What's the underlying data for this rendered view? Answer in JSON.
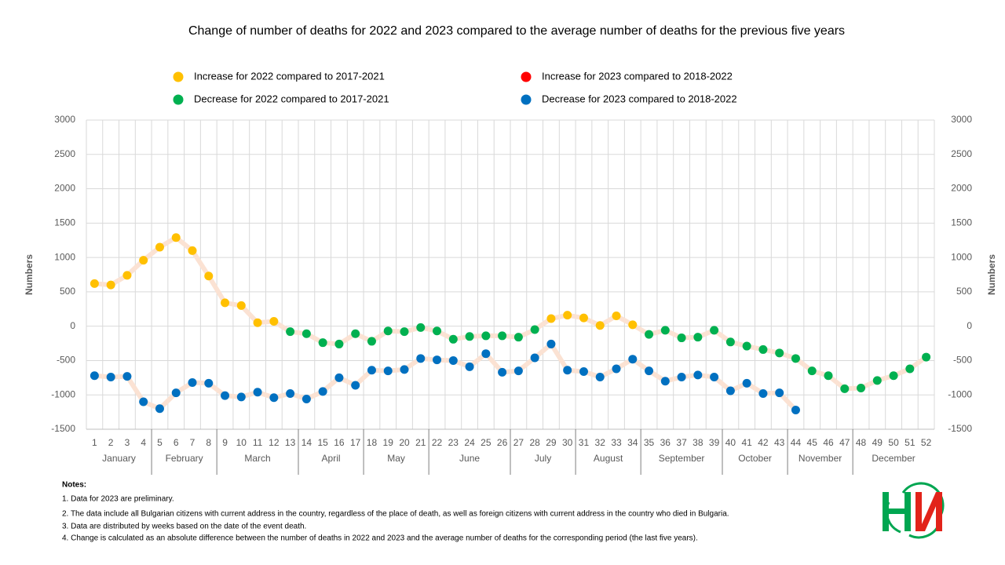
{
  "chart_data": {
    "type": "line",
    "title": "Change of number of deaths for 2022 and 2023 compared to the average number of deaths for the previous five years",
    "y_label": "Numbers",
    "y2_label": "Numbers",
    "categories": [
      "1",
      "2",
      "3",
      "4",
      "5",
      "6",
      "7",
      "8",
      "9",
      "10",
      "11",
      "12",
      "13",
      "14",
      "15",
      "16",
      "17",
      "18",
      "19",
      "20",
      "21",
      "22",
      "23",
      "24",
      "25",
      "26",
      "27",
      "28",
      "29",
      "30",
      "31",
      "32",
      "33",
      "34",
      "35",
      "36",
      "37",
      "38",
      "39",
      "40",
      "41",
      "42",
      "43",
      "44",
      "45",
      "46",
      "47",
      "48",
      "49",
      "50",
      "51",
      "52"
    ],
    "category_groups": [
      {
        "label": "January",
        "from": 1,
        "to": 4
      },
      {
        "label": "February",
        "from": 5,
        "to": 8
      },
      {
        "label": "March",
        "from": 9,
        "to": 13
      },
      {
        "label": "April",
        "from": 14,
        "to": 17
      },
      {
        "label": "May",
        "from": 18,
        "to": 21
      },
      {
        "label": "June",
        "from": 22,
        "to": 26
      },
      {
        "label": "July",
        "from": 27,
        "to": 30
      },
      {
        "label": "August",
        "from": 31,
        "to": 34
      },
      {
        "label": "September",
        "from": 35,
        "to": 39
      },
      {
        "label": "October",
        "from": 40,
        "to": 43
      },
      {
        "label": "November",
        "from": 44,
        "to": 47
      },
      {
        "label": "December",
        "from": 48,
        "to": 52
      }
    ],
    "line_color": "#fbe2d3",
    "series": [
      {
        "name": "Increase for 2022 compared to 2017-2021",
        "color": "#ffc000",
        "values": [
          620,
          600,
          740,
          960,
          1150,
          1290,
          1100,
          730,
          340,
          300,
          50,
          70,
          null,
          null,
          null,
          null,
          null,
          null,
          null,
          null,
          null,
          null,
          null,
          null,
          null,
          null,
          null,
          null,
          110,
          160,
          120,
          10,
          150,
          20,
          null,
          null,
          null,
          null,
          null,
          null,
          null,
          null,
          null,
          null,
          null,
          null,
          null,
          null,
          null,
          null,
          null,
          null
        ]
      },
      {
        "name": "Decrease for 2022 compared to 2017-2021",
        "color": "#00b050",
        "values": [
          null,
          null,
          null,
          null,
          null,
          null,
          null,
          null,
          null,
          null,
          null,
          null,
          -80,
          -110,
          -240,
          -260,
          -110,
          -220,
          -70,
          -80,
          -20,
          -70,
          -190,
          -150,
          -140,
          -140,
          -160,
          -50,
          null,
          null,
          null,
          null,
          null,
          null,
          -120,
          -60,
          -170,
          -160,
          -60,
          -230,
          -290,
          -340,
          -390,
          -470,
          -650,
          -720,
          -910,
          -900,
          -790,
          -720,
          -620,
          -450
        ]
      },
      {
        "name": "Increase for 2023 compared to 2018-2022",
        "color": "#ff0000",
        "values": [
          null,
          null,
          null,
          null,
          null,
          null,
          null,
          null,
          null,
          null,
          null,
          null,
          null,
          null,
          null,
          null,
          null,
          null,
          null,
          null,
          null,
          null,
          null,
          null,
          null,
          null,
          null,
          null,
          null,
          null,
          null,
          null,
          null,
          null,
          null,
          null,
          null,
          null,
          null,
          null,
          null,
          null,
          null,
          null,
          null,
          null,
          null,
          null,
          null,
          null,
          null,
          null
        ]
      },
      {
        "name": "Decrease for 2023 compared to 2018-2022",
        "color": "#0070c0",
        "values": [
          -720,
          -740,
          -730,
          -1100,
          -1200,
          -970,
          -820,
          -830,
          -1010,
          -1030,
          -960,
          -1040,
          -980,
          -1060,
          -950,
          -750,
          -860,
          -640,
          -650,
          -630,
          -470,
          -490,
          -500,
          -590,
          -400,
          -670,
          -650,
          -460,
          -260,
          -640,
          -660,
          -740,
          -620,
          -480,
          -650,
          -800,
          -740,
          -710,
          -740,
          -940,
          -830,
          -980,
          -970,
          -1220,
          null,
          null,
          null,
          null,
          null,
          null,
          null,
          null
        ]
      }
    ],
    "ylim": [
      -1500,
      3000
    ],
    "yticks": [
      -1500,
      -1000,
      -500,
      0,
      500,
      1000,
      1500,
      2000,
      2500,
      3000
    ],
    "y2lim": [
      -1500,
      3000
    ],
    "y2ticks": [
      -1500,
      -1000,
      -500,
      0,
      500,
      1000,
      1500,
      2000,
      2500,
      3000
    ],
    "grid": true
  },
  "notes": {
    "heading": "Notes:",
    "items": [
      "1. Data for 2023 are preliminary.",
      "2. The data include all Bulgarian citizens with current address in the country, regardless of the place of death, as well as foreign citizens with current address in the country who died in Bulgaria.",
      "3. Data are distributed by weeks based on the date of the event death.",
      "4. Change is calculated as an absolute difference between the number of deaths in 2022 and 2023 and the average number of deaths for the corresponding period (the last five years)."
    ]
  }
}
